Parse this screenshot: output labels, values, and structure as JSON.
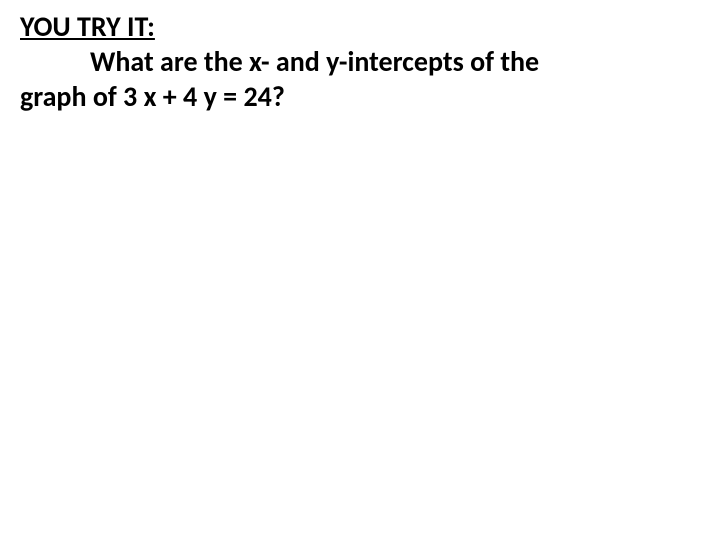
{
  "slide": {
    "heading": "YOU TRY IT:",
    "question_line1": "What are the x- and y-intercepts of the",
    "question_line2": "graph of 3 x + 4 y = 24?",
    "background_color": "#ffffff",
    "text_color": "#000000",
    "heading_fontsize": 28,
    "body_fontsize": 28,
    "heading_underline": true,
    "font_weight": "bold"
  }
}
